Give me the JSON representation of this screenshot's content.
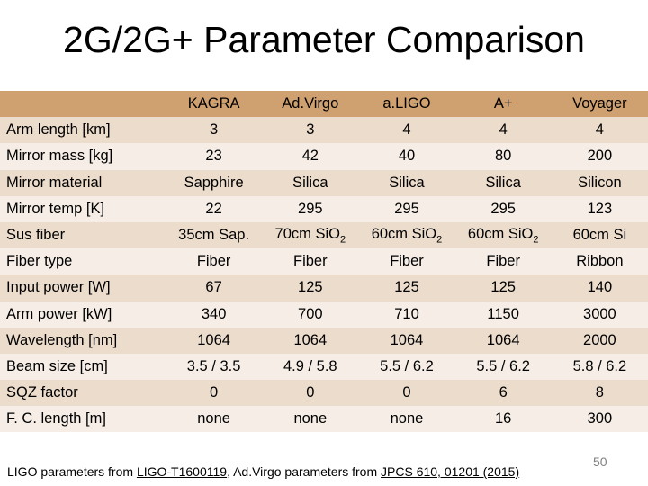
{
  "title": "2G/2G+ Parameter Comparison",
  "table": {
    "columns": [
      "KAGRA",
      "Ad.Virgo",
      "a.LIGO",
      "A+",
      "Voyager"
    ],
    "rows": [
      {
        "label": "Arm length [km]",
        "values": [
          "3",
          "3",
          "4",
          "4",
          "4"
        ]
      },
      {
        "label": "Mirror mass [kg]",
        "values": [
          "23",
          "42",
          "40",
          "80",
          "200"
        ]
      },
      {
        "label": "Mirror material",
        "values": [
          "Sapphire",
          "Silica",
          "Silica",
          "Silica",
          "Silicon"
        ]
      },
      {
        "label": "Mirror temp [K]",
        "values": [
          "22",
          "295",
          "295",
          "295",
          "123"
        ]
      },
      {
        "label": "Sus fiber",
        "values": [
          "35cm Sap.",
          "70cm SiO2",
          "60cm SiO2",
          "60cm SiO2",
          "60cm Si"
        ]
      },
      {
        "label": "Fiber type",
        "values": [
          "Fiber",
          "Fiber",
          "Fiber",
          "Fiber",
          "Ribbon"
        ]
      },
      {
        "label": "Input power [W]",
        "values": [
          "67",
          "125",
          "125",
          "125",
          "140"
        ]
      },
      {
        "label": "Arm power [kW]",
        "values": [
          "340",
          "700",
          "710",
          "1150",
          "3000"
        ]
      },
      {
        "label": "Wavelength [nm]",
        "values": [
          "1064",
          "1064",
          "1064",
          "1064",
          "2000"
        ]
      },
      {
        "label": "Beam size [cm]",
        "values": [
          "3.5 / 3.5",
          "4.9 / 5.8",
          "5.5 / 6.2",
          "5.5 / 6.2",
          "5.8 / 6.2"
        ]
      },
      {
        "label": "SQZ factor",
        "values": [
          "0",
          "0",
          "0",
          "6",
          "8"
        ]
      },
      {
        "label": "F. C. length [m]",
        "values": [
          "none",
          "none",
          "none",
          "16",
          "300"
        ]
      }
    ]
  },
  "footnote": {
    "text_1": "LIGO parameters from ",
    "link_1": "LIGO-T1600119",
    "text_2": ", Ad.Virgo parameters from ",
    "link_2": "JPCS 610, 01201 (2015)"
  },
  "slide_number": "50",
  "colors": {
    "header_bg": "#cfa070",
    "row_odd_bg": "#ecdccc",
    "row_even_bg": "#f6eee6"
  }
}
